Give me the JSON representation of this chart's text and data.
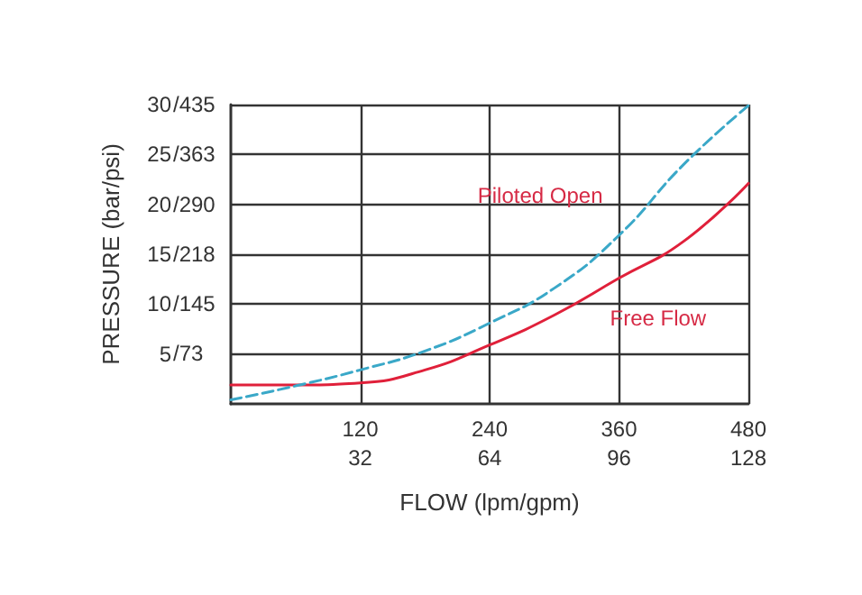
{
  "chart_data": {
    "type": "line",
    "xlabel": "FLOW (lpm/gpm)",
    "ylabel": "PRESSURE (bar/psi)",
    "xlim": [
      0,
      480
    ],
    "ylim": [
      0,
      30
    ],
    "xticks": [
      120,
      240,
      360,
      480
    ],
    "x2lim": [
      0,
      128
    ],
    "x2ticks": [
      32,
      64,
      96,
      128
    ],
    "yticks": [
      5,
      10,
      15,
      20,
      25,
      30
    ],
    "y2lim": [
      0,
      435
    ],
    "y2ticks": [
      {
        "value": 73,
        "label": "/73"
      },
      {
        "value": 145,
        "label": "/145"
      },
      {
        "value": 218,
        "label": "/218"
      },
      {
        "value": 290,
        "label": "/290"
      },
      {
        "value": 363,
        "label": "/363"
      },
      {
        "value": 435,
        "label": "/435"
      }
    ],
    "grid": true,
    "legend": false,
    "marker": "none",
    "series": [
      {
        "name": "Free Flow",
        "color": "#e0203a",
        "line_style": "solid",
        "x": [
          0,
          60,
          120,
          180,
          240,
          300,
          360,
          420,
          480
        ],
        "values": [
          1.9,
          1.9,
          2.1,
          3.4,
          5.9,
          8.9,
          12.6,
          16.3,
          22.1
        ]
      },
      {
        "name": "Piloted Open",
        "color": "#3aa8c8",
        "line_style": "dashed",
        "x": [
          0,
          60,
          120,
          180,
          240,
          300,
          360,
          420,
          480
        ],
        "values": [
          0.4,
          1.8,
          3.4,
          5.3,
          8.1,
          11.6,
          16.9,
          24.0,
          29.9
        ]
      }
    ]
  }
}
